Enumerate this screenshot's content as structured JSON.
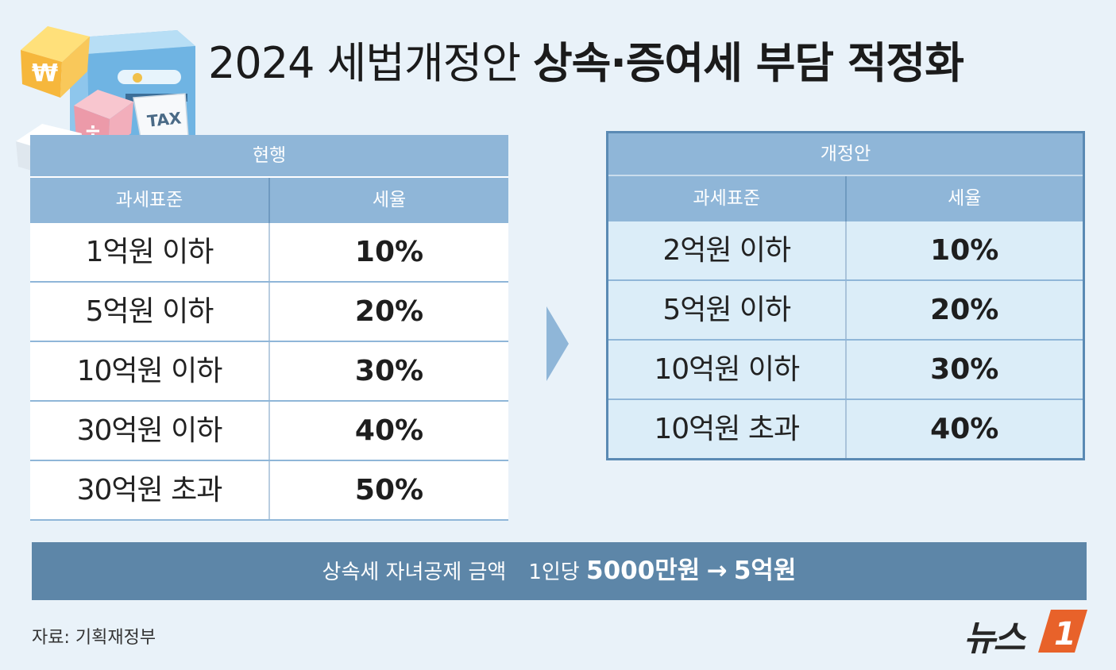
{
  "title": {
    "light": "2024 세법개정안",
    "bold": "상속·증여세 부담 적정화"
  },
  "illustration": {
    "tax_label": "TAX",
    "symbols": [
      "₩",
      "÷",
      "+"
    ]
  },
  "current": {
    "caption": "현행",
    "headers": [
      "과세표준",
      "세율"
    ],
    "rows": [
      {
        "bracket": "1억원 이하",
        "rate": "10%"
      },
      {
        "bracket": "5억원 이하",
        "rate": "20%"
      },
      {
        "bracket": "10억원 이하",
        "rate": "30%"
      },
      {
        "bracket": "30억원 이하",
        "rate": "40%"
      },
      {
        "bracket": "30억원 초과",
        "rate": "50%"
      }
    ]
  },
  "revised": {
    "caption": "개정안",
    "headers": [
      "과세표준",
      "세율"
    ],
    "rows": [
      {
        "bracket": "2억원 이하",
        "rate": "10%"
      },
      {
        "bracket": "5억원 이하",
        "rate": "20%"
      },
      {
        "bracket": "10억원 이하",
        "rate": "30%"
      },
      {
        "bracket": "10억원 초과",
        "rate": "40%"
      }
    ]
  },
  "banner": {
    "label": "상속세 자녀공제 금액",
    "per": "1인당",
    "from": "5000만원",
    "arrow": "→",
    "to": "5억원"
  },
  "source": "자료: 기획재정부",
  "logo": {
    "text": "뉴스",
    "mark": "1",
    "color": "#e8622a"
  },
  "colors": {
    "background": "#e9f2f9",
    "header": "#8fb6d8",
    "banner": "#5d86a8",
    "revised_body": "#dbedf8"
  }
}
